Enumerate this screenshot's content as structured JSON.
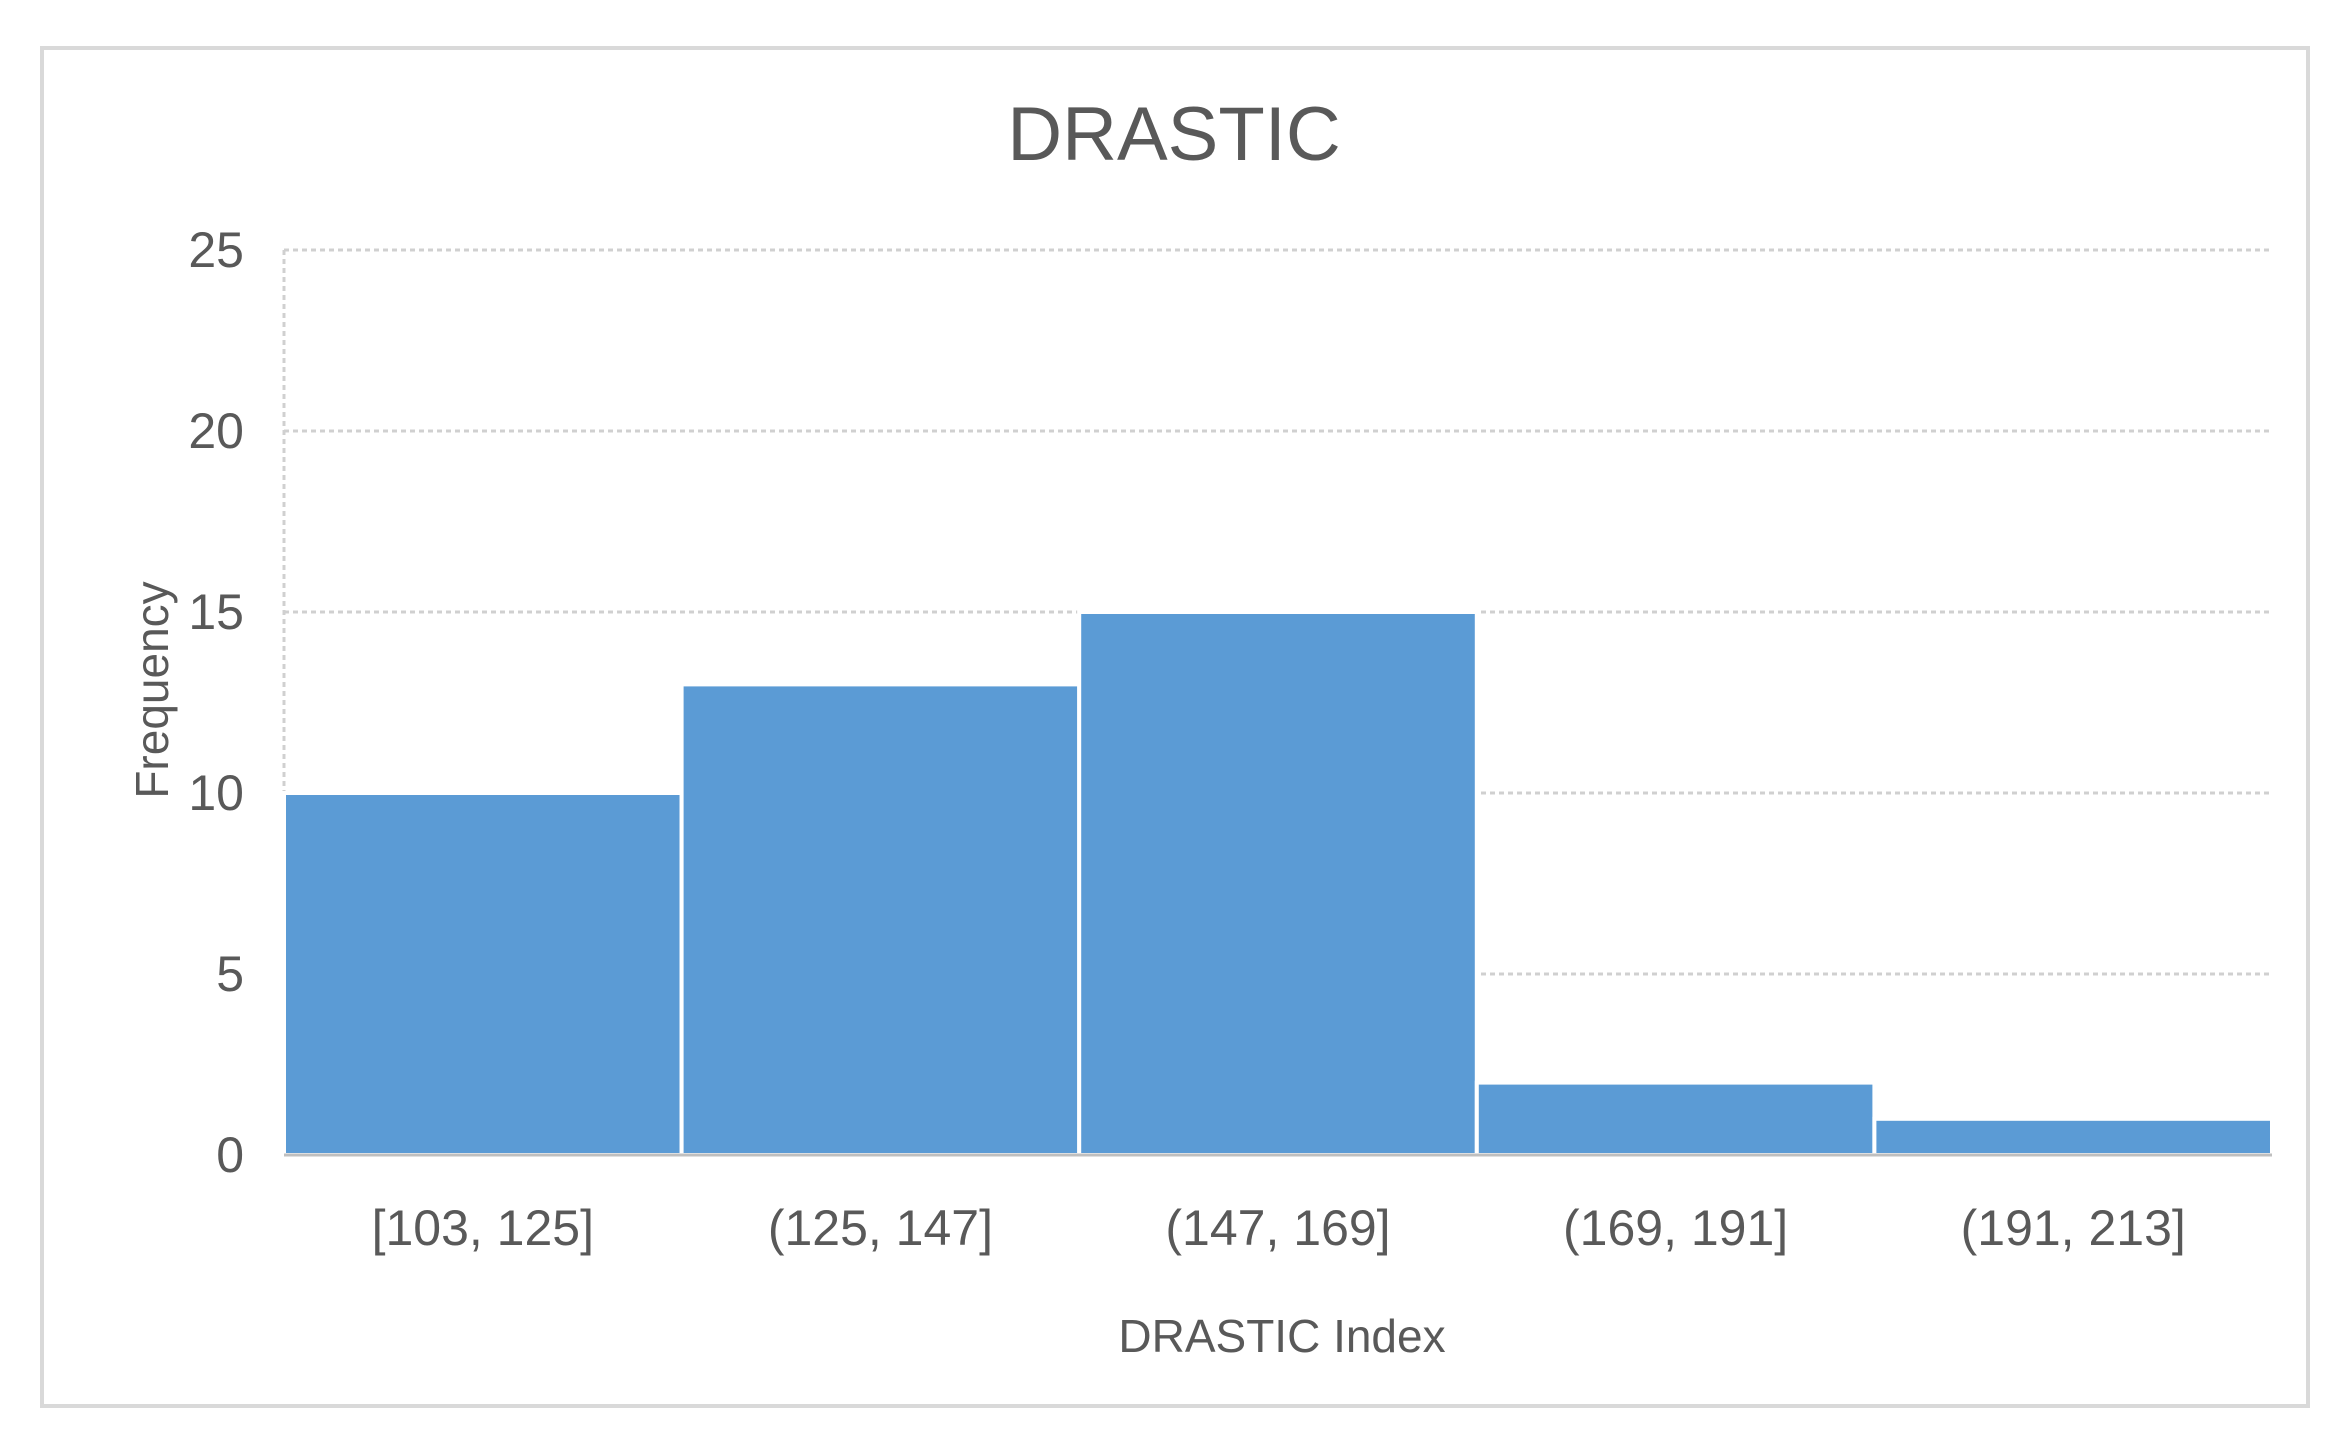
{
  "chart_data": {
    "type": "bar",
    "title": "DRASTIC",
    "xlabel": "DRASTIC Index",
    "ylabel": "Frequency",
    "categories": [
      "[103, 125]",
      "(125, 147]",
      "(147, 169]",
      "(169, 191]",
      "(191, 213]"
    ],
    "values": [
      10,
      13,
      15,
      2,
      1
    ],
    "ylim": [
      0,
      25
    ],
    "yticks": [
      "0",
      "5",
      "10",
      "15",
      "20",
      "25"
    ],
    "grid": true,
    "bar_color": "#5b9bd5",
    "legend": "none"
  }
}
